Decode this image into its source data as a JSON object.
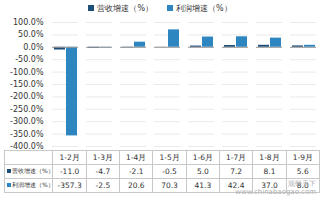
{
  "chart_data": {
    "type": "bar",
    "categories": [
      "1-2月",
      "1-3月",
      "1-4月",
      "1-5月",
      "1-6月",
      "1-7月",
      "1-8月",
      "1-9月"
    ],
    "series": [
      {
        "name": "营收增速（%）",
        "color": "#1f4e79",
        "values": [
          -11.0,
          -4.7,
          -2.1,
          -0.5,
          5.0,
          7.2,
          8.1,
          5.6
        ],
        "value_labels": [
          "-11.0",
          "-4.7",
          "-2.1",
          "-0.5",
          "5.0",
          "7.2",
          "8.1",
          "5.6"
        ]
      },
      {
        "name": "利润增速（%）",
        "color": "#2e86c1",
        "values": [
          -357.3,
          -2.5,
          20.6,
          70.3,
          41.3,
          42.4,
          37.0,
          8.0
        ],
        "value_labels": [
          "-357.3",
          "-2.5",
          "20.6",
          "70.3",
          "41.3",
          "42.4",
          "37.0",
          "8.0"
        ]
      }
    ],
    "ylim": [
      -400,
      100
    ],
    "yticks": [
      {
        "value": -400,
        "label": "-400.0%"
      },
      {
        "value": -350,
        "label": "-350.0%"
      },
      {
        "value": -300,
        "label": "-300.0%"
      },
      {
        "value": -250,
        "label": "-250.0%"
      },
      {
        "value": -200,
        "label": "-200.0%"
      },
      {
        "value": -150,
        "label": "-150.0%"
      },
      {
        "value": -100,
        "label": "-100.0%"
      },
      {
        "value": -50,
        "label": "-50.0%"
      },
      {
        "value": 0,
        "label": "0.0%"
      },
      {
        "value": 50,
        "label": "50.0%"
      },
      {
        "value": 100,
        "label": "100.0%"
      }
    ],
    "grid": true,
    "legend": "top",
    "annotations": [
      "观研天下",
      "www.chinabaogao.com"
    ]
  }
}
